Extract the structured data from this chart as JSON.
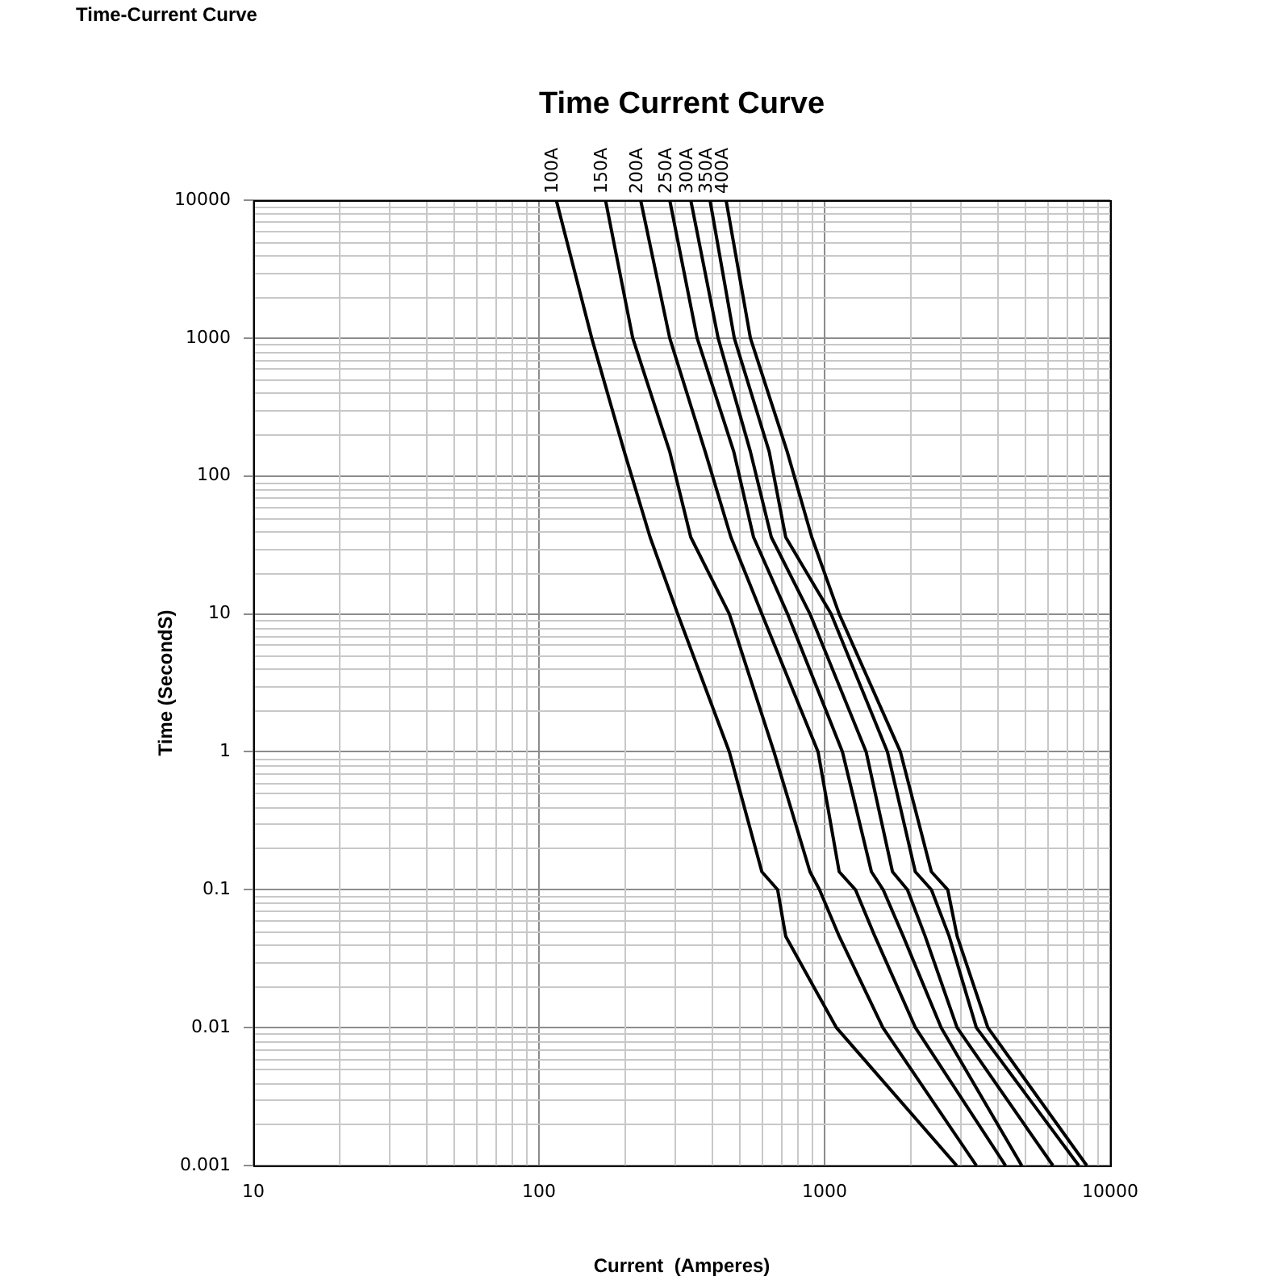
{
  "chart_data": {
    "type": "line",
    "title": "Time Current Curve",
    "xlabel": "Current  (Amperes)",
    "ylabel": "Time (SecondS)",
    "annotations": [
      "Time-Current Curve"
    ],
    "log": "xy",
    "xlim": [
      10,
      10000
    ],
    "xticks": [
      10,
      100,
      1000,
      10000
    ],
    "ylim": [
      0.001,
      10000
    ],
    "yticks": [
      0.001,
      0.01,
      0.1,
      1,
      10,
      100,
      1000,
      10000
    ],
    "grid": true,
    "legend": false,
    "marker": "none",
    "line_style": "solid",
    "series": [
      {
        "name": "100A",
        "color": "#000000",
        "x": [
          115,
          153,
          199,
          245,
          306,
          464,
          603,
          685,
          731,
          1100,
          2900
        ],
        "values": [
          10000,
          1000,
          150,
          36,
          10,
          1,
          0.135,
          0.1,
          0.046,
          0.01,
          0.001
        ]
      },
      {
        "name": "150A",
        "color": "#000000",
        "x": [
          171,
          213,
          287,
          340,
          464,
          665,
          889,
          960,
          1125,
          1600,
          3400
        ],
        "values": [
          10000,
          1000,
          150,
          36,
          10,
          1,
          0.135,
          0.1,
          0.046,
          0.01,
          0.001
        ]
      },
      {
        "name": "200A",
        "color": "#000000",
        "x": [
          227,
          287,
          382,
          470,
          603,
          949,
          1125,
          1283,
          1500,
          2080,
          4300
        ],
        "values": [
          10000,
          1000,
          150,
          36,
          10,
          1,
          0.135,
          0.1,
          0.046,
          0.01,
          0.001
        ]
      },
      {
        "name": "250A",
        "color": "#000000",
        "x": [
          287,
          358,
          481,
          564,
          742,
          1155,
          1459,
          1604,
          1885,
          2560,
          4900
        ],
        "values": [
          10000,
          1000,
          150,
          36,
          10,
          1,
          0.135,
          0.1,
          0.046,
          0.01,
          0.001
        ]
      },
      {
        "name": "300A",
        "color": "#000000",
        "x": [
          340,
          424,
          550,
          651,
          889,
          1398,
          1729,
          1950,
          2250,
          2910,
          6300
        ],
        "values": [
          10000,
          1000,
          150,
          36,
          10,
          1,
          0.135,
          0.1,
          0.046,
          0.01,
          0.001
        ]
      },
      {
        "name": "350A",
        "color": "#000000",
        "x": [
          397,
          483,
          640,
          731,
          1054,
          1660,
          2078,
          2366,
          2730,
          3400,
          7760
        ],
        "values": [
          10000,
          1000,
          150,
          36,
          10,
          1,
          0.135,
          0.1,
          0.046,
          0.01,
          0.001
        ]
      },
      {
        "name": "400A",
        "color": "#000000",
        "x": [
          452,
          550,
          740,
          902,
          1125,
          1843,
          2366,
          2700,
          2912,
          3730,
          8280
        ],
        "values": [
          10000,
          1000,
          150,
          36,
          10,
          1,
          0.135,
          0.1,
          0.046,
          0.01,
          0.001
        ]
      }
    ]
  }
}
